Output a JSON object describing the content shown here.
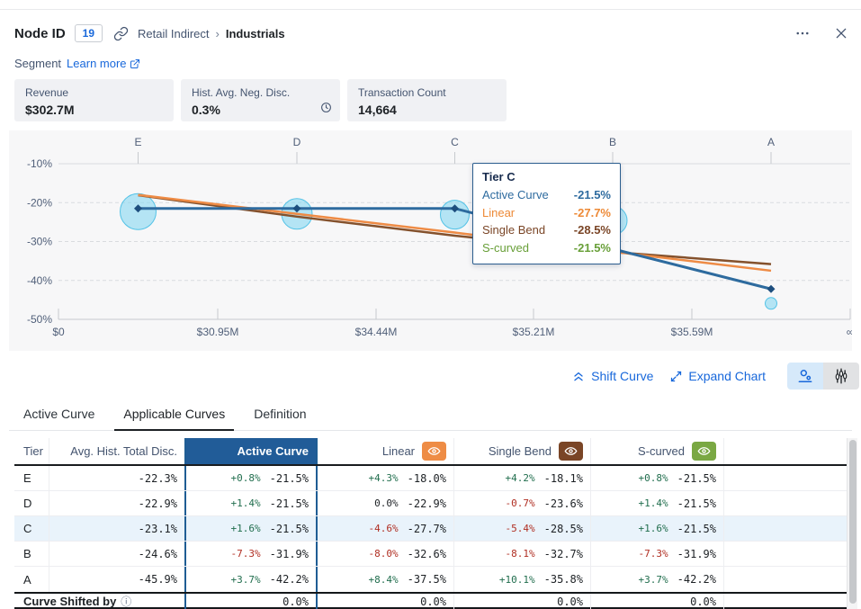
{
  "header": {
    "title": "Node ID",
    "node_badge": "19",
    "breadcrumb_parent": "Retail Indirect",
    "breadcrumb_separator": "›",
    "breadcrumb_current": "Industrials"
  },
  "segment": {
    "label": "Segment",
    "learn_more": "Learn more"
  },
  "stats": [
    {
      "label": "Revenue",
      "value": "$302.7M"
    },
    {
      "label": "Hist. Avg. Neg. Disc.",
      "value": "0.3%",
      "icon": "clock-icon"
    },
    {
      "label": "Transaction Count",
      "value": "14,664"
    }
  ],
  "chart_data": {
    "type": "line",
    "x_tier_labels": [
      "E",
      "D",
      "C",
      "B",
      "A"
    ],
    "x_axis_ticks": [
      "$0",
      "$30.95M",
      "$34.44M",
      "$35.21M",
      "$35.59M",
      "∞"
    ],
    "y_ticks": [
      "-10%",
      "-20%",
      "-30%",
      "-40%",
      "-50%"
    ],
    "ylim": [
      -50,
      -10
    ],
    "grid": true,
    "series": [
      {
        "name": "Active Curve",
        "color": "#2e6b9f",
        "values": [
          -21.5,
          -21.5,
          -21.5,
          -31.9,
          -42.2
        ]
      },
      {
        "name": "Linear",
        "color": "#ee8b45",
        "values": [
          -18.0,
          -22.9,
          -27.7,
          -32.6,
          -37.5
        ]
      },
      {
        "name": "Single Bend",
        "color": "#84512c",
        "values": [
          -18.1,
          -23.6,
          -28.5,
          -32.7,
          -35.8
        ]
      },
      {
        "name": "S-curved",
        "color": "#77ab43",
        "values": [
          -21.5,
          -21.5,
          -21.5,
          -31.9,
          -42.2
        ]
      }
    ],
    "bubbles": {
      "name": "Avg. Hist. Total Disc.",
      "values": [
        -22.3,
        -22.9,
        -23.1,
        -24.6,
        -45.9
      ],
      "sizes": [
        20,
        17,
        16,
        16,
        6.5
      ]
    }
  },
  "tooltip": {
    "title": "Tier C",
    "rows": [
      {
        "label": "Active Curve",
        "value": "-21.5%",
        "color": "#2e6b9f"
      },
      {
        "label": "Linear",
        "value": "-27.7%",
        "color": "#ed8936"
      },
      {
        "label": "Single Bend",
        "value": "-28.5%",
        "color": "#7a4526"
      },
      {
        "label": "S-curved",
        "value": "-21.5%",
        "color": "#689f38"
      }
    ]
  },
  "controls": {
    "shift_curve": "Shift Curve",
    "expand_chart": "Expand Chart"
  },
  "tabs": [
    {
      "label": "Active Curve"
    },
    {
      "label": "Applicable Curves",
      "active": true
    },
    {
      "label": "Definition"
    }
  ],
  "table": {
    "columns": [
      "Tier",
      "Avg. Hist. Total Disc.",
      "Active Curve",
      "Linear",
      "Single Bend",
      "S-curved"
    ],
    "rows": [
      {
        "tier": "E",
        "avg": "-22.3%",
        "cells": [
          [
            "+0.8%",
            "-21.5%"
          ],
          [
            "+4.3%",
            "-18.0%"
          ],
          [
            "+4.2%",
            "-18.1%"
          ],
          [
            "+0.8%",
            "-21.5%"
          ]
        ]
      },
      {
        "tier": "D",
        "avg": "-22.9%",
        "cells": [
          [
            "+1.4%",
            "-21.5%"
          ],
          [
            "0.0%",
            "-22.9%"
          ],
          [
            "-0.7%",
            "-23.6%"
          ],
          [
            "+1.4%",
            "-21.5%"
          ]
        ]
      },
      {
        "tier": "C",
        "avg": "-23.1%",
        "highlight": true,
        "cells": [
          [
            "+1.6%",
            "-21.5%"
          ],
          [
            "-4.6%",
            "-27.7%"
          ],
          [
            "-5.4%",
            "-28.5%"
          ],
          [
            "+1.6%",
            "-21.5%"
          ]
        ]
      },
      {
        "tier": "B",
        "avg": "-24.6%",
        "cells": [
          [
            "-7.3%",
            "-31.9%"
          ],
          [
            "-8.0%",
            "-32.6%"
          ],
          [
            "-8.1%",
            "-32.7%"
          ],
          [
            "-7.3%",
            "-31.9%"
          ]
        ]
      },
      {
        "tier": "A",
        "avg": "-45.9%",
        "cells": [
          [
            "+3.7%",
            "-42.2%"
          ],
          [
            "+8.4%",
            "-37.5%"
          ],
          [
            "+10.1%",
            "-35.8%"
          ],
          [
            "+3.7%",
            "-42.2%"
          ]
        ]
      }
    ],
    "footer": {
      "label": "Curve Shifted by",
      "values": [
        "0.0%",
        "0.0%",
        "0.0%",
        "0.0%"
      ]
    }
  },
  "colors": {
    "accent_blue": "#1868db",
    "active_header_bg": "#215c98",
    "active_column_border": "#1f5d94",
    "linear_eye_bg": "#ee8c45",
    "single_bend_eye_bg": "#7a4526",
    "s_curved_eye_bg": "#7aa843",
    "delta_positive": "#216e4e",
    "delta_negative": "#b02e22",
    "row_highlight": "#e9f3fb"
  }
}
